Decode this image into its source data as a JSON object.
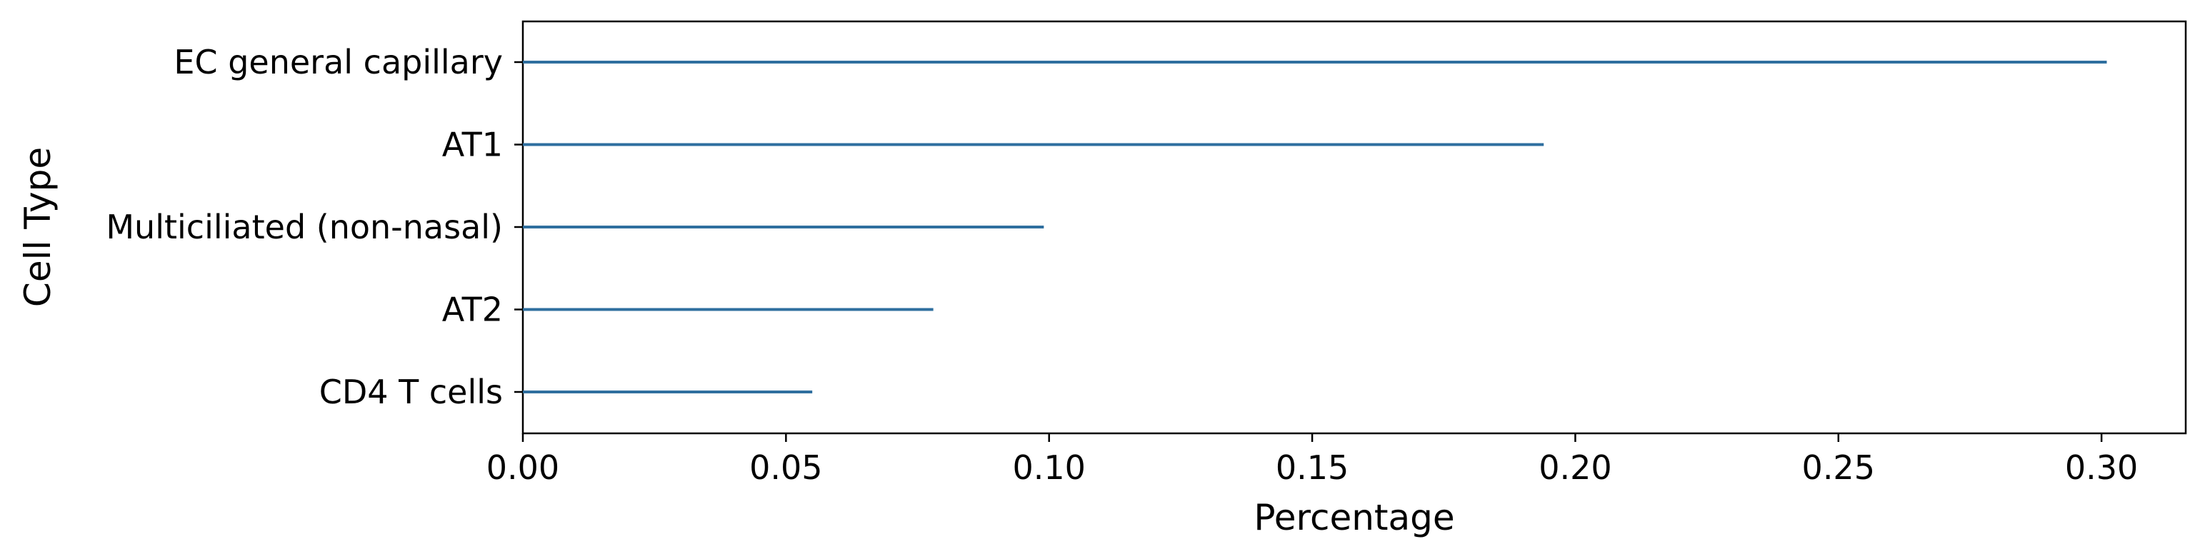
{
  "chart_data": {
    "type": "bar",
    "orientation": "horizontal",
    "title": "",
    "xlabel": "Percentage",
    "ylabel": "Cell Type",
    "xlim": [
      0,
      0.316
    ],
    "x_ticks": [
      0.0,
      0.05,
      0.1,
      0.15,
      0.2,
      0.25,
      0.3
    ],
    "x_tick_labels": [
      "0.00",
      "0.05",
      "0.10",
      "0.15",
      "0.20",
      "0.25",
      "0.30"
    ],
    "categories": [
      "EC general capillary",
      "AT1",
      "Multiciliated (non-nasal)",
      "AT2",
      "CD4 T cells"
    ],
    "values": [
      0.301,
      0.194,
      0.099,
      0.078,
      0.055
    ],
    "bar_color": "#2f6f9f",
    "grid": false,
    "legend": "none"
  }
}
